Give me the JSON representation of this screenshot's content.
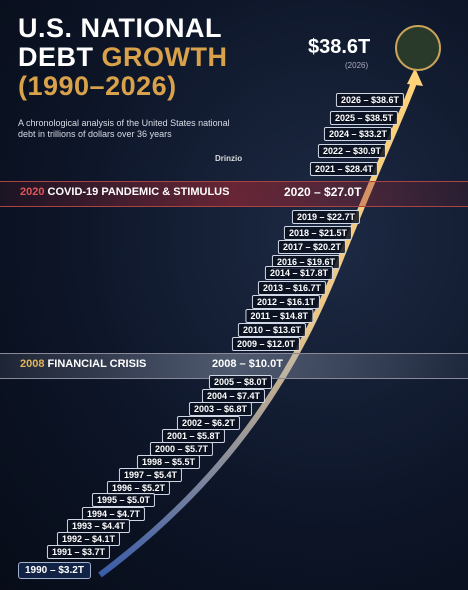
{
  "header": {
    "title_line1": "U.S. NATIONAL",
    "title_line2a": "DEBT",
    "title_line2b": "GROWTH",
    "title_line3": "(1990–2026)",
    "subtitle": "A chronological analysis of the United States national debt in trillions of dollars over 36 years"
  },
  "brand": "Drinzio",
  "peak": {
    "value": "$38.6T",
    "year": "(2026)"
  },
  "events": [
    {
      "year": "2020",
      "name": "COVID-19 PANDEMIC & STIMULUS",
      "label": "2020 – $27.0T"
    },
    {
      "year": "2008",
      "name": "FINANCIAL CRISIS",
      "label": "2008 – $10.0T"
    }
  ],
  "timeline": [
    "2026 – $38.6T",
    "2025 – $38.5T",
    "2024 – $33.2T",
    "2022 – $30.9T",
    "2021 – $28.4T",
    "2019 – $22.7T",
    "2018 – $21.5T",
    "2017 – $20.2T",
    "2016 – $19.6T",
    "2014 – $17.8T",
    "2013 – $16.7T",
    "2012 – $16.1T",
    "2011 – $14.8T",
    "2010 – $13.6T",
    "2009 – $12.0T",
    "2005 – $8.0T",
    "2004 – $7.4T",
    "2003 – $6.8T",
    "2002 – $6.2T",
    "2001 – $5.8T",
    "2000 – $5.7T",
    "1998 – $5.5T",
    "1997 – $5.4T",
    "1996 – $5.2T",
    "1995 – $5.0T",
    "1994 – $4.7T",
    "1993 – $4.4T",
    "1992 – $4.1T",
    "1991 – $3.7T"
  ],
  "start": "1990 – $3.2T"
}
